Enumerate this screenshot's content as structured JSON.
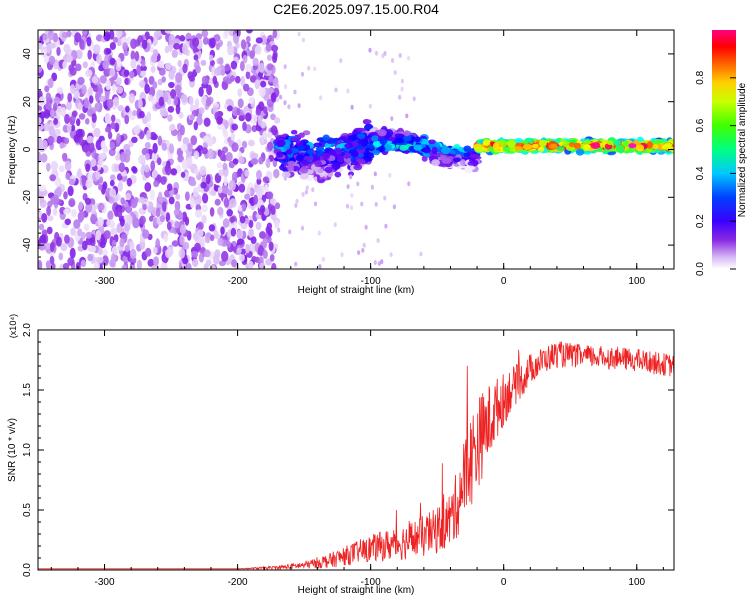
{
  "title": "C2E6.2025.097.15.00.R04",
  "colorbar": {
    "label": "Normalized spectral amplitude",
    "ticks": [
      "0.0",
      "0.2",
      "0.4",
      "0.6",
      "0.8"
    ],
    "tick_values": [
      0.0,
      0.2,
      0.4,
      0.6,
      0.8
    ],
    "range": [
      0,
      1
    ]
  },
  "chart_data": [
    {
      "type": "heatmap",
      "panel": "spectrogram",
      "xlabel": "Height of straight line (km)",
      "ylabel": "Frequency (Hz)",
      "xlim": [
        -350,
        128
      ],
      "ylim": [
        -50,
        50
      ],
      "xticks": [
        -300,
        -200,
        -100,
        0,
        100
      ],
      "yticks": [
        -40,
        -20,
        0,
        20,
        40
      ],
      "colormap": [
        "#ffffff",
        "#d7b7f5",
        "#8a2be2",
        "#5a00ff",
        "#0000ff",
        "#00a0ff",
        "#00ffff",
        "#00ff60",
        "#8cff00",
        "#ffff00",
        "#ff8000",
        "#ff0000",
        "#ff00c0"
      ],
      "regions": [
        {
          "x_range": [
            -350,
            -170
          ],
          "freq_spread": 50,
          "amplitude": 0.12
        },
        {
          "x_range": [
            -170,
            -100
          ],
          "freq_spread": 12,
          "amplitude": 0.35
        },
        {
          "x_range": [
            -100,
            -20
          ],
          "freq_spread": 6,
          "amplitude": 0.45
        },
        {
          "x_range": [
            -20,
            128
          ],
          "freq_spread": 3,
          "amplitude": 0.9
        }
      ]
    },
    {
      "type": "line",
      "panel": "snr",
      "xlabel": "Height of straight line (km)",
      "ylabel": "SNR (10 * v/v)",
      "y_multiplier": "(x10⁴)",
      "xlim": [
        -350,
        128
      ],
      "ylim": [
        0,
        2.0
      ],
      "xticks": [
        -300,
        -200,
        -100,
        0,
        100
      ],
      "yticks": [
        0.0,
        0.5,
        1.0,
        1.5,
        2.0
      ],
      "color": "#ee2222",
      "x": [
        -350,
        -300,
        -250,
        -200,
        -170,
        -150,
        -130,
        -110,
        -100,
        -90,
        -80,
        -70,
        -60,
        -50,
        -40,
        -35,
        -30,
        -25,
        -20,
        -15,
        -10,
        -5,
        0,
        5,
        10,
        15,
        20,
        30,
        40,
        60,
        80,
        100,
        128
      ],
      "y": [
        0.01,
        0.01,
        0.01,
        0.01,
        0.02,
        0.04,
        0.08,
        0.15,
        0.18,
        0.2,
        0.22,
        0.25,
        0.28,
        0.33,
        0.42,
        0.55,
        0.75,
        0.9,
        1.05,
        1.15,
        1.25,
        1.35,
        1.42,
        1.5,
        1.55,
        1.6,
        1.68,
        1.75,
        1.8,
        1.78,
        1.77,
        1.75,
        1.7
      ],
      "noise": [
        0,
        0,
        0,
        0,
        0.01,
        0.02,
        0.04,
        0.06,
        0.07,
        0.08,
        0.09,
        0.1,
        0.11,
        0.12,
        0.15,
        0.18,
        0.22,
        0.25,
        0.25,
        0.22,
        0.2,
        0.16,
        0.14,
        0.12,
        0.1,
        0.09,
        0.08,
        0.07,
        0.07,
        0.06,
        0.06,
        0.06,
        0.06
      ]
    }
  ]
}
